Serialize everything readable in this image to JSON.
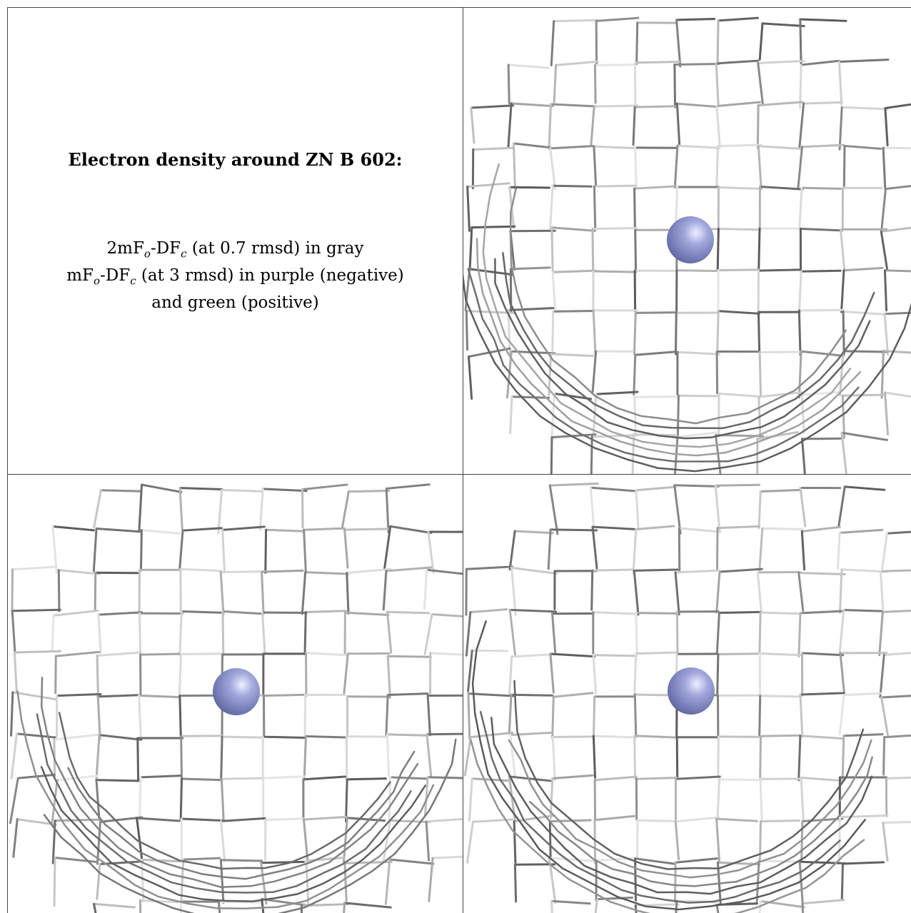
{
  "legend": {
    "title": "Electron density around ZN B 602:",
    "line1": "2mFₒ-DFᶜ (at 0.7 rmsd) in gray",
    "line1_parts": [
      "2mF",
      "o",
      "-DF",
      "c",
      " (at 0.7 rmsd) in gray"
    ],
    "line2_parts": [
      "mF",
      "o",
      "-DF",
      "c",
      " (at 3 rmsd) in purple (negative)"
    ],
    "line3": "and green (positive)"
  },
  "colors": {
    "atom": "#8f96cc",
    "mesh_dark": "#5a5a5a",
    "mesh_light": "#d6d6d6",
    "border": "#444444"
  },
  "panels": [
    {
      "id": "view-1",
      "icon": "zinc-atom-sphere"
    },
    {
      "id": "view-2",
      "icon": "zinc-atom-sphere"
    },
    {
      "id": "view-3",
      "icon": "zinc-atom-sphere"
    }
  ]
}
